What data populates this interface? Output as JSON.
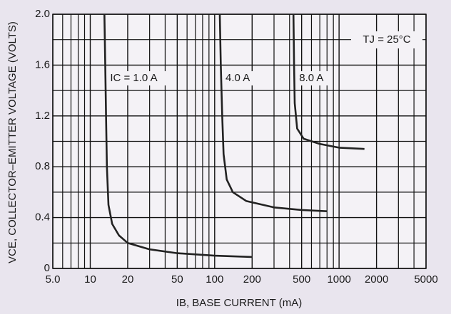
{
  "chart_data": {
    "type": "line",
    "y_label": "VCE, COLLECTOR–EMITTER VOLTAGE (VOLTS)",
    "x_label": "IB, BASE CURRENT (mA)",
    "annotation": "TJ = 25°C",
    "x_scale": "log",
    "grid": true,
    "xlim": [
      5,
      5000
    ],
    "xticks": [
      {
        "value": 5,
        "label": "5.0"
      },
      10,
      20,
      50,
      100,
      200,
      500,
      1000,
      2000,
      5000
    ],
    "x_minor_ticks": [
      6,
      7,
      8,
      9,
      30,
      40,
      60,
      70,
      80,
      90,
      300,
      400,
      600,
      700,
      800,
      900,
      3000,
      4000
    ],
    "ylim": [
      0,
      2
    ],
    "yticks": [
      0,
      0.4,
      0.8,
      1.2,
      1.6,
      {
        "value": 2,
        "label": "2.0"
      }
    ],
    "y_minor_ticks": [
      0.2,
      0.6,
      1.0,
      1.4,
      1.8
    ],
    "series": [
      {
        "name": "IC = 1.0 A",
        "color": "#222222",
        "x": [
          13,
          13.2,
          13.4,
          13.6,
          14,
          15,
          17,
          20,
          30,
          50,
          100,
          200
        ],
        "values": [
          2.0,
          1.6,
          1.2,
          0.8,
          0.5,
          0.35,
          0.26,
          0.2,
          0.15,
          0.12,
          0.1,
          0.09
        ]
      },
      {
        "name": "4.0 A",
        "color": "#222222",
        "x": [
          110,
          112,
          115,
          118,
          125,
          140,
          180,
          300,
          500,
          800
        ],
        "values": [
          2.0,
          1.6,
          1.2,
          0.9,
          0.7,
          0.6,
          0.53,
          0.48,
          0.46,
          0.45
        ]
      },
      {
        "name": "8.0 A",
        "color": "#222222",
        "x": [
          430,
          435,
          440,
          460,
          520,
          700,
          1000,
          1600
        ],
        "values": [
          2.0,
          1.6,
          1.3,
          1.1,
          1.02,
          0.98,
          0.95,
          0.94
        ]
      }
    ]
  }
}
